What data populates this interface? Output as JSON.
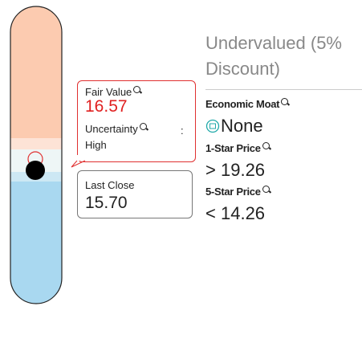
{
  "fair_value_box": {
    "label": "Fair Value",
    "value": "16.57",
    "uncertainty_label": "Uncertainty",
    "colon": ":",
    "uncertainty": "High"
  },
  "last_close_box": {
    "label": "Last Close",
    "value": "15.70"
  },
  "valuation": "Undervalued (5% Discount)",
  "economic_moat": {
    "label": "Economic Moat",
    "value": "None"
  },
  "one_star_price": {
    "label": "1-Star Price",
    "symbol": ">",
    "value": "19.26"
  },
  "five_star_price": {
    "label": "5-Star Price",
    "symbol": "<",
    "value": "14.26"
  }
}
